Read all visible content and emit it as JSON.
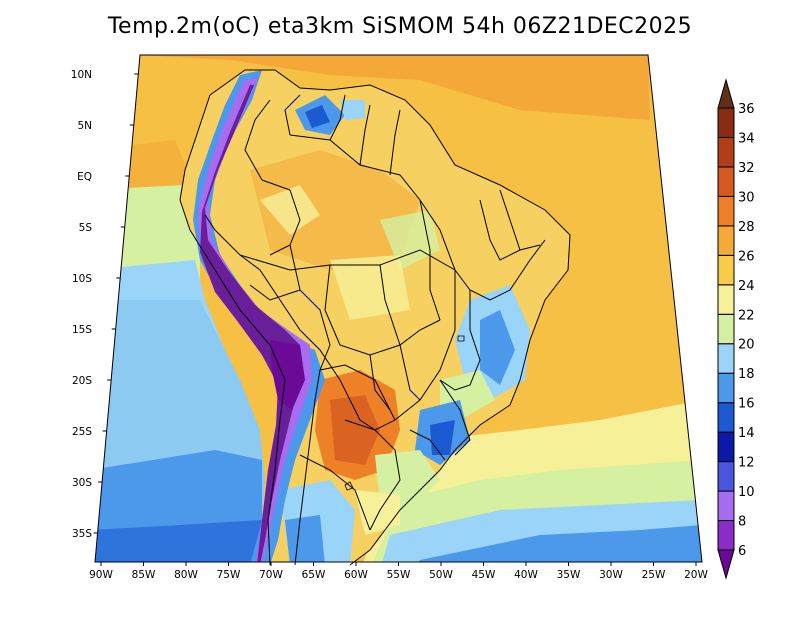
{
  "title": "Temp.2m(oC) eta3km SiSMOM 54h 06Z21DEC2025",
  "map": {
    "lon_ticks": [
      "90W",
      "85W",
      "80W",
      "75W",
      "70W",
      "65W",
      "60W",
      "55W",
      "50W",
      "45W",
      "40W",
      "35W",
      "30W",
      "25W",
      "20W"
    ],
    "lat_ticks": [
      "10N",
      "5N",
      "EQ",
      "5S",
      "10S",
      "15S",
      "20S",
      "25S",
      "30S",
      "35S"
    ]
  },
  "colorbar": {
    "labels": [
      "6",
      "8",
      "10",
      "12",
      "14",
      "16",
      "18",
      "20",
      "22",
      "24",
      "26",
      "28",
      "30",
      "32",
      "34",
      "36"
    ],
    "colors": [
      "#6a0a96",
      "#8a2cc8",
      "#a86cf0",
      "#4a56e0",
      "#0a1aa8",
      "#1c5ad2",
      "#4c98ea",
      "#9ad4f8",
      "#d4f0a0",
      "#f6f098",
      "#f8cc48",
      "#f4aa38",
      "#ee8028",
      "#d45a20",
      "#b03e18",
      "#8a2c14",
      "#603018"
    ]
  },
  "colors": {
    "ocean_main": "#f5c044",
    "ocean_north": "#f3a838",
    "ocean_south_pacific": "#8ccaf2",
    "andes": "#6a1f9a"
  }
}
